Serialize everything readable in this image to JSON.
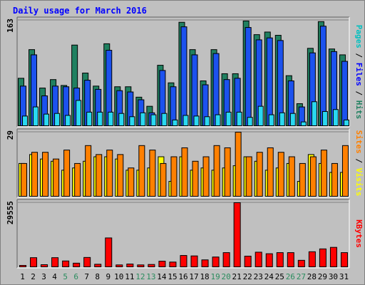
{
  "title": "Daily usage for March 2016",
  "colors": {
    "title": "#0000ff",
    "hits": "#006666",
    "hits_fill": "#208060",
    "files": "#0000ff",
    "files_fill": "#1c52ee",
    "pages": "#00c0c0",
    "pages_fill": "#2ad8f0",
    "visits": "#ffff00",
    "sites": "#ff8000",
    "kbytes": "#ff0000",
    "weekend": "#2a8c5e",
    "weekday": "#000000"
  },
  "chart_data": [
    {
      "type": "bar",
      "ylabel_parts": [
        "Pages",
        "Files",
        "Hits"
      ],
      "ylabel_separator": " / ",
      "ymax_label": "163",
      "ylim": [
        0,
        163
      ],
      "categories": [
        "1",
        "2",
        "3",
        "4",
        "5",
        "6",
        "7",
        "8",
        "9",
        "10",
        "11",
        "12",
        "13",
        "14",
        "15",
        "16",
        "17",
        "18",
        "19",
        "20",
        "21",
        "22",
        "23",
        "24",
        "25",
        "26",
        "27",
        "28",
        "29",
        "30",
        "31"
      ],
      "series": [
        {
          "name": "Hits",
          "values": [
            74,
            118,
            59,
            72,
            63,
            125,
            82,
            62,
            127,
            61,
            61,
            45,
            31,
            94,
            67,
            160,
            118,
            70,
            118,
            81,
            81,
            162,
            141,
            145,
            140,
            78,
            35,
            120,
            161,
            119,
            110
          ]
        },
        {
          "name": "Files",
          "values": [
            62,
            110,
            47,
            62,
            61,
            59,
            71,
            57,
            117,
            55,
            53,
            41,
            21,
            86,
            61,
            153,
            110,
            64,
            112,
            72,
            74,
            152,
            133,
            136,
            132,
            70,
            30,
            113,
            154,
            115,
            100
          ]
        },
        {
          "name": "Pages",
          "values": [
            16,
            30,
            19,
            20,
            17,
            40,
            22,
            22,
            22,
            20,
            15,
            21,
            18,
            20,
            10,
            17,
            16,
            15,
            18,
            22,
            22,
            14,
            31,
            18,
            21,
            20,
            7,
            38,
            23,
            26,
            10
          ]
        }
      ]
    },
    {
      "type": "bar",
      "ylabel_parts": [
        "Sites",
        "Visits"
      ],
      "ylabel_separator": " / ",
      "ymax_label": "29",
      "ylim": [
        0,
        29
      ],
      "categories": [
        "1",
        "2",
        "3",
        "4",
        "5",
        "6",
        "7",
        "8",
        "9",
        "10",
        "11",
        "12",
        "13",
        "14",
        "15",
        "16",
        "17",
        "18",
        "19",
        "20",
        "21",
        "22",
        "23",
        "24",
        "25",
        "26",
        "27",
        "28",
        "29",
        "30",
        "31"
      ],
      "series": [
        {
          "name": "Visits",
          "values": [
            15,
            19,
            17,
            16,
            12,
            13,
            16,
            18,
            18,
            17,
            12,
            12,
            13,
            18,
            7,
            18,
            12,
            13,
            12,
            13,
            14,
            18,
            16,
            12,
            13,
            15,
            7,
            19,
            15,
            11,
            11
          ]
        },
        {
          "name": "Sites",
          "values": [
            15,
            20,
            20,
            17,
            21,
            15,
            23,
            19,
            21,
            19,
            13,
            23,
            21,
            15,
            18,
            22,
            16,
            18,
            23,
            22,
            29,
            18,
            20,
            22,
            20,
            18,
            15,
            18,
            21,
            15,
            23
          ]
        }
      ]
    },
    {
      "type": "bar",
      "ylabel_parts": [
        "KBytes"
      ],
      "ymax_label": "29555",
      "ylim": [
        0,
        29555
      ],
      "categories": [
        "1",
        "2",
        "3",
        "4",
        "5",
        "6",
        "7",
        "8",
        "9",
        "10",
        "11",
        "12",
        "13",
        "14",
        "15",
        "16",
        "17",
        "18",
        "19",
        "20",
        "21",
        "22",
        "23",
        "24",
        "25",
        "26",
        "27",
        "28",
        "29",
        "30",
        "31"
      ],
      "weekend_days": [
        "5",
        "6",
        "12",
        "13",
        "19",
        "20",
        "26",
        "27"
      ],
      "series": [
        {
          "name": "KBytes",
          "values": [
            400,
            4500,
            1300,
            4500,
            3000,
            2000,
            4600,
            1500,
            13500,
            1200,
            1600,
            1200,
            1400,
            2900,
            2500,
            5500,
            5300,
            3500,
            4800,
            6800,
            29555,
            5200,
            7000,
            6300,
            6800,
            6800,
            3300,
            7200,
            8500,
            9200,
            6800
          ]
        }
      ]
    }
  ]
}
